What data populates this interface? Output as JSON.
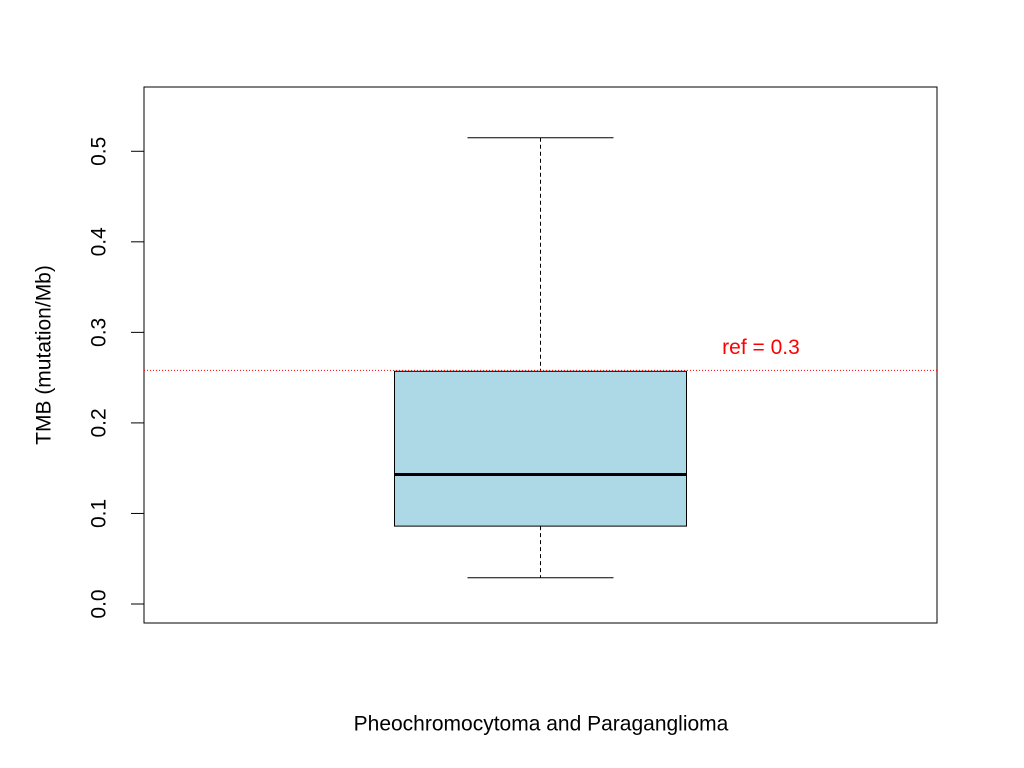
{
  "chart_data": {
    "type": "box",
    "x_label": "Pheochromocytoma and Paraganglioma",
    "y_label": "TMB (mutation/Mb)",
    "boxes": [
      {
        "min": 0.029,
        "q1": 0.086,
        "median": 0.143,
        "q3": 0.257,
        "max": 0.515
      }
    ],
    "color": "#add8e6",
    "ylim": [
      -0.021,
      0.571
    ],
    "yticks": [
      {
        "value": 0,
        "label": "0.0"
      },
      0.1,
      0.2,
      0.3,
      0.4,
      0.5
    ],
    "ref_line": 0.258,
    "ref_color": "#ff0000",
    "annotation": "ref = 0.3"
  }
}
